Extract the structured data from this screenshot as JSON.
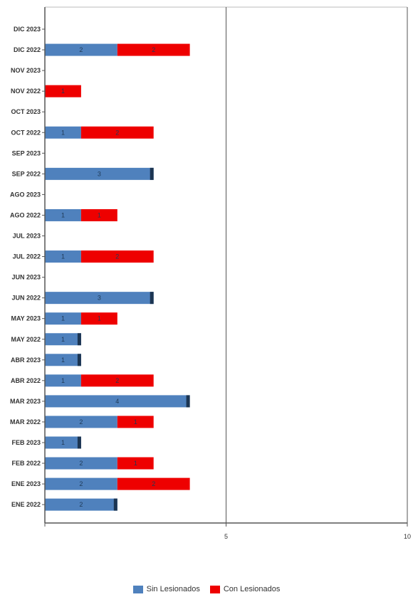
{
  "colors": {
    "sin": "#4f81bd",
    "con": "#ee0000",
    "cap": "#1c3552",
    "axis": "#555555"
  },
  "chart_data": {
    "type": "bar",
    "orientation": "horizontal",
    "stacked": true,
    "categories": [
      "DIC 2023",
      "DIC 2022",
      "NOV 2023",
      "NOV 2022",
      "OCT 2023",
      "OCT 2022",
      "SEP 2023",
      "SEP 2022",
      "AGO 2023",
      "AGO 2022",
      "JUL 2023",
      "JUL 2022",
      "JUN 2023",
      "JUN 2022",
      "MAY 2023",
      "MAY 2022",
      "ABR 2023",
      "ABR 2022",
      "MAR 2023",
      "MAR 2022",
      "FEB 2023",
      "FEB 2022",
      "ENE 2023",
      "ENE 2022"
    ],
    "series": [
      {
        "name": "Sin Lesionados",
        "values": [
          0,
          2,
          0,
          0,
          0,
          1,
          0,
          3,
          0,
          1,
          0,
          1,
          0,
          3,
          1,
          1,
          1,
          1,
          4,
          2,
          1,
          2,
          2,
          2
        ]
      },
      {
        "name": "Con Lesionados",
        "values": [
          0,
          2,
          0,
          1,
          0,
          2,
          0,
          0,
          0,
          1,
          0,
          2,
          0,
          0,
          1,
          0,
          0,
          2,
          0,
          1,
          0,
          1,
          2,
          0
        ]
      }
    ],
    "xlim": [
      0,
      10
    ],
    "xticks": [
      0,
      5,
      10
    ],
    "xtick_labels": [
      "",
      "5",
      "10"
    ],
    "grid": "vertical at 5",
    "legend_placement": "bottom"
  }
}
